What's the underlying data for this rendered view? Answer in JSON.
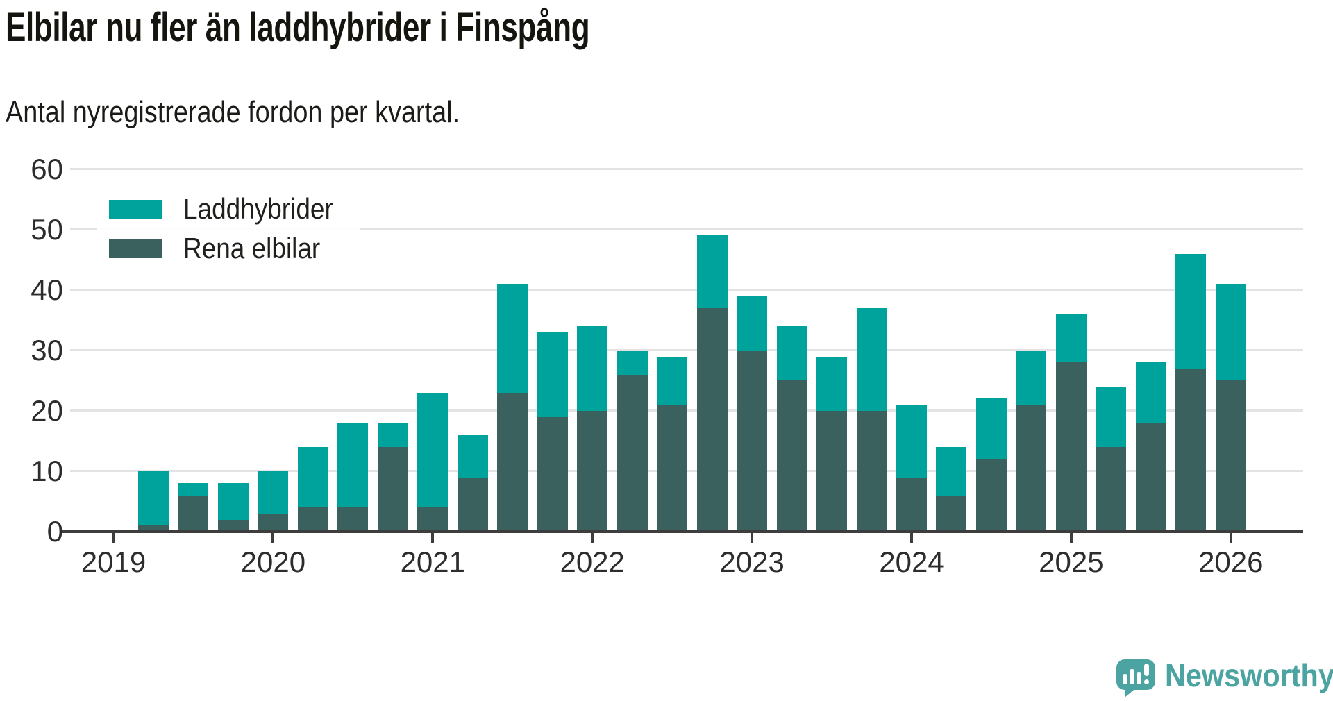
{
  "title": "Elbilar nu fler än laddhybrider i Finspång",
  "subtitle": "Antal nyregistrerade fordon per kvartal.",
  "legend": {
    "items": [
      {
        "label": "Laddhybrider",
        "color": "#00a39c"
      },
      {
        "label": "Rena elbilar",
        "color": "#3a615d"
      }
    ]
  },
  "colors": {
    "laddhybrider": "#00a39c",
    "rena_elbilar": "#3a615d",
    "axis": "#3d3d3d",
    "gridline": "#e3e3e3",
    "brand": "#4ba3a2",
    "text": "#2d2d2d"
  },
  "chart_data": {
    "type": "bar",
    "stacked": true,
    "title": "Elbilar nu fler än laddhybrider i Finspång",
    "subtitle": "Antal nyregistrerade fordon per kvartal.",
    "categories": [
      "2019-Q2",
      "2019-Q3",
      "2019-Q4",
      "2020-Q1",
      "2020-Q2",
      "2020-Q3",
      "2020-Q4",
      "2021-Q1",
      "2021-Q2",
      "2021-Q3",
      "2021-Q4",
      "2022-Q1",
      "2022-Q2",
      "2022-Q3",
      "2022-Q4",
      "2023-Q1",
      "2023-Q2",
      "2023-Q3",
      "2023-Q4",
      "2024-Q1",
      "2024-Q2",
      "2024-Q3",
      "2024-Q4",
      "2025-Q1",
      "2025-Q2",
      "2025-Q3",
      "2025-Q4",
      "2026-Q1"
    ],
    "series": [
      {
        "name": "Rena elbilar",
        "color": "#3a615d",
        "values": [
          1,
          6,
          2,
          3,
          4,
          4,
          14,
          4,
          9,
          23,
          19,
          20,
          26,
          21,
          37,
          30,
          25,
          20,
          20,
          9,
          6,
          12,
          21,
          28,
          14,
          18,
          27,
          25
        ]
      },
      {
        "name": "Laddhybrider",
        "color": "#00a39c",
        "values": [
          9,
          2,
          6,
          7,
          10,
          14,
          4,
          19,
          7,
          18,
          14,
          14,
          4,
          8,
          12,
          9,
          9,
          9,
          17,
          12,
          8,
          10,
          9,
          8,
          10,
          10,
          19,
          16
        ]
      }
    ],
    "totals": [
      10,
      8,
      8,
      10,
      14,
      18,
      18,
      23,
      16,
      41,
      33,
      34,
      30,
      29,
      49,
      39,
      34,
      29,
      37,
      21,
      14,
      22,
      30,
      36,
      24,
      28,
      46,
      41
    ],
    "ylim": [
      0,
      60
    ],
    "y_ticks": [
      0,
      10,
      20,
      30,
      40,
      50,
      60
    ],
    "x_tick_years": [
      "2019",
      "2020",
      "2021",
      "2022",
      "2023",
      "2024",
      "2025",
      "2026"
    ],
    "grid": "horizontal",
    "legend_position": "top-left"
  },
  "branding": {
    "name": "Newsworthy"
  }
}
